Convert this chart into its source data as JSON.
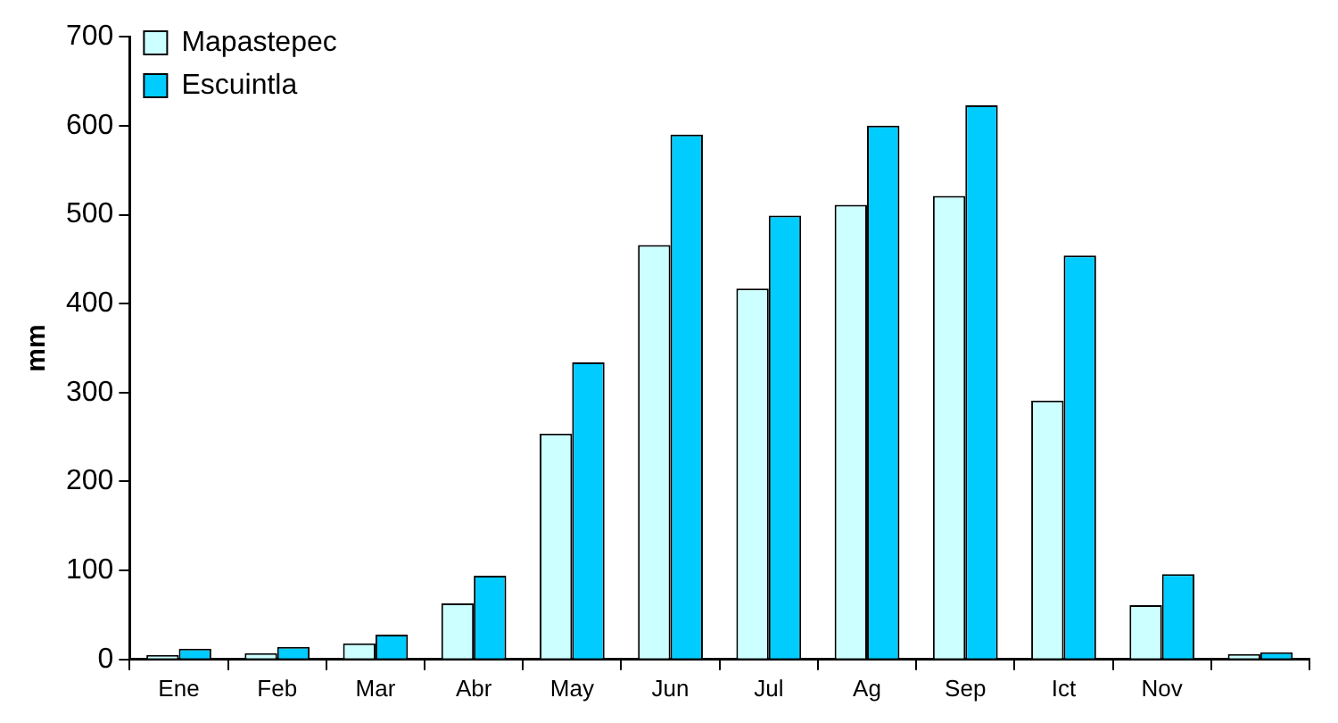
{
  "chart_data": {
    "type": "bar",
    "ylabel": "mm",
    "categories": [
      "Ene",
      "Feb",
      "Mar",
      "Abr",
      "May",
      "Jun",
      "Jul",
      "Ag",
      "Sep",
      "Ict",
      "Nov",
      null
    ],
    "series": [
      {
        "name": "Mapastepec",
        "color": "#ccffff",
        "values": [
          5,
          7,
          18,
          63,
          254,
          466,
          417,
          511,
          521,
          291,
          61,
          6
        ]
      },
      {
        "name": "Escuintla",
        "color": "#00ccff",
        "values": [
          12,
          14,
          28,
          94,
          334,
          590,
          499,
          600,
          623,
          454,
          96,
          8
        ]
      }
    ],
    "ylim": [
      0,
      700
    ],
    "yticks": [
      0,
      100,
      200,
      300,
      400,
      500,
      600,
      700
    ],
    "grid": false,
    "legend": "top left"
  }
}
